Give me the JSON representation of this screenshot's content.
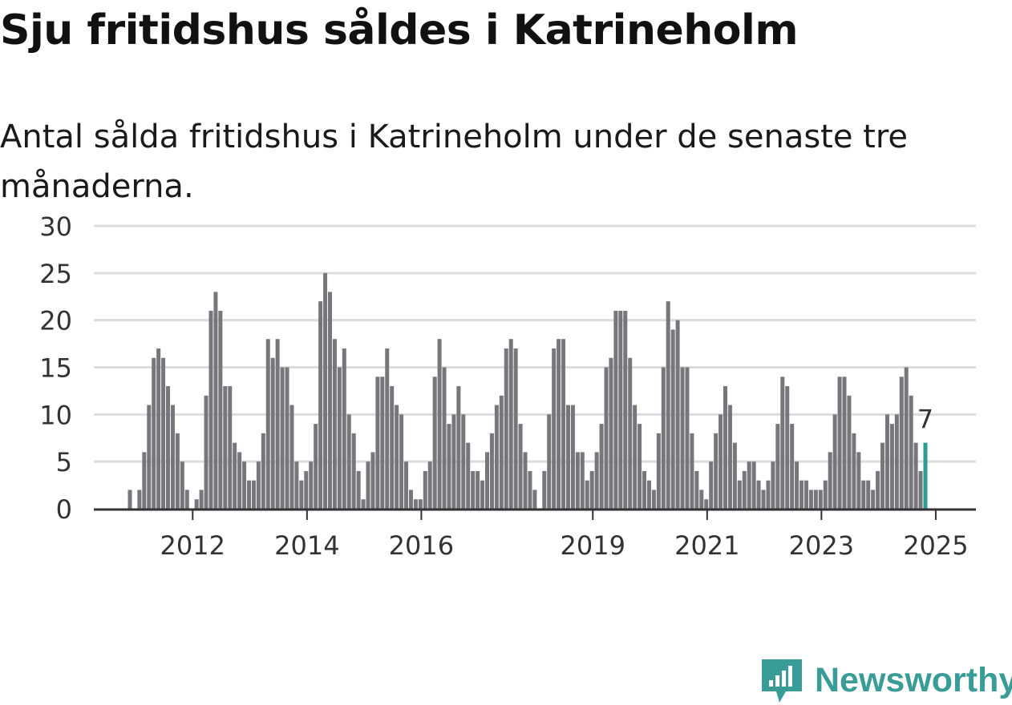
{
  "title": "Sju fritidshus såldes i Katrineholm",
  "subtitle": "Antal sålda fritidshus i Katrineholm under de senaste tre månaderna.",
  "brand": {
    "name": "Newsworthy",
    "icon": "newsworthy-logo-icon"
  },
  "colors": {
    "bar": "#77767a",
    "highlight": "#2a9d96",
    "grid": "#dcdcdc",
    "axis": "#333333",
    "brand": "#3a9c96"
  },
  "chart_data": {
    "type": "bar",
    "x_unit": "month",
    "start_month": "2011-01",
    "ylim": [
      0,
      30
    ],
    "yticks": [
      0,
      5,
      10,
      15,
      20,
      25,
      30
    ],
    "xticks": [
      "2012",
      "2014",
      "2016",
      "2019",
      "2021",
      "2023",
      "2025"
    ],
    "grid": true,
    "values": [
      2,
      0,
      2,
      6,
      11,
      16,
      17,
      16,
      13,
      11,
      8,
      5,
      2,
      0,
      1,
      2,
      12,
      21,
      23,
      21,
      13,
      13,
      7,
      6,
      5,
      3,
      3,
      5,
      8,
      18,
      16,
      18,
      15,
      15,
      11,
      5,
      3,
      4,
      5,
      9,
      22,
      25,
      23,
      18,
      15,
      17,
      10,
      8,
      4,
      1,
      5,
      6,
      14,
      14,
      17,
      13,
      11,
      10,
      5,
      2,
      1,
      1,
      4,
      5,
      14,
      18,
      15,
      9,
      10,
      13,
      10,
      7,
      4,
      4,
      3,
      6,
      8,
      11,
      12,
      17,
      18,
      17,
      9,
      6,
      4,
      2,
      0,
      4,
      10,
      17,
      18,
      18,
      11,
      11,
      6,
      6,
      3,
      4,
      6,
      9,
      15,
      16,
      21,
      21,
      21,
      16,
      11,
      9,
      4,
      3,
      2,
      8,
      15,
      22,
      19,
      20,
      15,
      15,
      8,
      4,
      2,
      1,
      5,
      8,
      10,
      13,
      11,
      7,
      3,
      4,
      5,
      5,
      3,
      2,
      3,
      5,
      9,
      14,
      13,
      9,
      5,
      3,
      3,
      2,
      2,
      2,
      3,
      6,
      10,
      14,
      14,
      12,
      8,
      6,
      3,
      3,
      2,
      4,
      7,
      10,
      9,
      10,
      14,
      15,
      12,
      7,
      4,
      7
    ],
    "highlight_label": "7"
  }
}
